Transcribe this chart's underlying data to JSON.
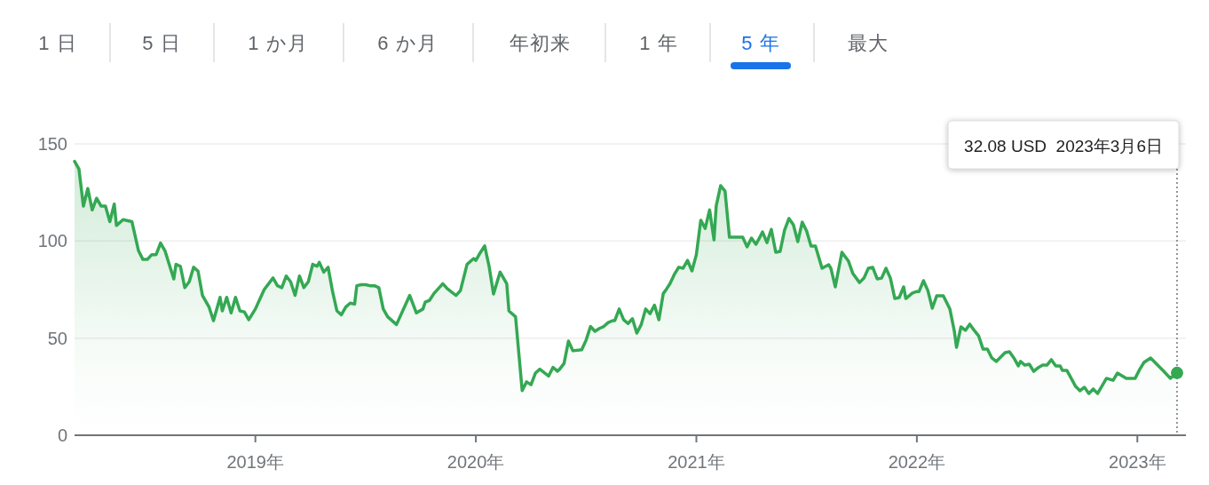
{
  "chart_data": {
    "type": "area",
    "annotations": [
      "1 日",
      "5 日",
      "1 か月",
      "6 か月",
      "年初来",
      "1 年",
      "5 年",
      "最大",
      "32.08 USD  2023年3月6日"
    ],
    "xlim": [
      2018.18,
      2023.18
    ],
    "xticks": [
      {
        "value": 2019,
        "label": "2019年"
      },
      {
        "value": 2020,
        "label": "2020年"
      },
      {
        "value": 2021,
        "label": "2021年"
      },
      {
        "value": 2022,
        "label": "2022年"
      },
      {
        "value": 2023,
        "label": "2023年"
      }
    ],
    "ylim": [
      0,
      150
    ],
    "yticks": [
      0,
      50,
      100,
      150
    ],
    "grid": "y",
    "ref_lines": [
      {
        "axis": "x",
        "value": 2023.18,
        "label": null,
        "color": "#70757a",
        "line_style": "dotted"
      }
    ],
    "series": [
      {
        "color": "#34a853",
        "x": [
          2018.18,
          2018.2,
          2018.22,
          2018.24,
          2018.26,
          2018.28,
          2018.3,
          2018.32,
          2018.34,
          2018.36,
          2018.37,
          2018.4,
          2018.44,
          2018.47,
          2018.49,
          2018.51,
          2018.53,
          2018.55,
          2018.57,
          2018.59,
          2018.63,
          2018.64,
          2018.66,
          2018.68,
          2018.7,
          2018.72,
          2018.74,
          2018.76,
          2018.79,
          2018.81,
          2018.84,
          2018.85,
          2018.87,
          2018.89,
          2018.91,
          2018.93,
          2018.95,
          2018.97,
          2019.0,
          2019.04,
          2019.08,
          2019.1,
          2019.12,
          2019.14,
          2019.16,
          2019.18,
          2019.2,
          2019.22,
          2019.24,
          2019.26,
          2019.28,
          2019.29,
          2019.31,
          2019.33,
          2019.35,
          2019.37,
          2019.39,
          2019.41,
          2019.43,
          2019.45,
          2019.46,
          2019.48,
          2019.5,
          2019.52,
          2019.54,
          2019.56,
          2019.58,
          2019.6,
          2019.64,
          2019.7,
          2019.73,
          2019.76,
          2019.77,
          2019.79,
          2019.81,
          2019.85,
          2019.87,
          2019.91,
          2019.93,
          2019.96,
          2019.99,
          2020.0,
          2020.02,
          2020.04,
          2020.06,
          2020.08,
          2020.11,
          2020.14,
          2020.15,
          2020.18,
          2020.21,
          2020.23,
          2020.25,
          2020.27,
          2020.29,
          2020.33,
          2020.35,
          2020.37,
          2020.38,
          2020.4,
          2020.42,
          2020.44,
          2020.48,
          2020.5,
          2020.52,
          2020.54,
          2020.56,
          2020.58,
          2020.6,
          2020.62,
          2020.63,
          2020.65,
          2020.67,
          2020.69,
          2020.71,
          2020.73,
          2020.75,
          2020.77,
          2020.79,
          2020.81,
          2020.83,
          2020.85,
          2020.86,
          2020.88,
          2020.9,
          2020.92,
          2020.94,
          2020.96,
          2020.98,
          2021.0,
          2021.02,
          2021.04,
          2021.06,
          2021.08,
          2021.09,
          2021.11,
          2021.13,
          2021.15,
          2021.21,
          2021.23,
          2021.25,
          2021.27,
          2021.29,
          2021.3,
          2021.32,
          2021.34,
          2021.36,
          2021.38,
          2021.4,
          2021.42,
          2021.44,
          2021.46,
          2021.48,
          2021.5,
          2021.52,
          2021.54,
          2021.57,
          2021.6,
          2021.61,
          2021.63,
          2021.66,
          2021.69,
          2021.71,
          2021.74,
          2021.76,
          2021.78,
          2021.8,
          2021.82,
          2021.84,
          2021.86,
          2021.88,
          2021.9,
          2021.92,
          2021.94,
          2021.95,
          2021.98,
          2022.0,
          2022.01,
          2022.03,
          2022.05,
          2022.07,
          2022.09,
          2022.12,
          2022.15,
          2022.17,
          2022.18,
          2022.2,
          2022.22,
          2022.24,
          2022.26,
          2022.28,
          2022.3,
          2022.32,
          2022.34,
          2022.36,
          2022.38,
          2022.4,
          2022.42,
          2022.44,
          2022.46,
          2022.47,
          2022.49,
          2022.51,
          2022.53,
          2022.55,
          2022.57,
          2022.59,
          2022.61,
          2022.63,
          2022.65,
          2022.66,
          2022.68,
          2022.7,
          2022.72,
          2022.74,
          2022.76,
          2022.78,
          2022.8,
          2022.82,
          2022.86,
          2022.89,
          2022.91,
          2022.95,
          2022.99,
          2023.01,
          2023.03,
          2023.06,
          2023.1,
          2023.12,
          2023.15,
          2023.18
        ],
        "values": [
          141,
          137,
          118,
          127,
          116,
          122,
          118,
          118,
          110,
          119,
          108,
          111,
          110,
          95,
          90.5,
          90.5,
          93,
          93,
          99,
          95,
          80.5,
          88,
          87,
          76,
          79,
          86.5,
          84.5,
          72,
          66,
          59,
          71,
          64,
          71,
          63,
          71,
          64,
          63.5,
          59.5,
          65,
          75,
          81,
          77,
          76,
          82,
          79,
          72,
          82,
          76,
          79,
          88,
          87,
          89,
          84,
          86.5,
          74,
          64,
          62,
          66,
          68,
          67.5,
          77,
          77.5,
          77.5,
          77,
          77,
          76,
          65,
          61,
          57,
          72,
          63,
          65,
          68.5,
          69.5,
          73,
          78,
          75.5,
          72,
          74.5,
          88,
          91,
          90,
          94,
          97.5,
          87,
          72.7,
          84,
          78,
          64,
          61,
          23,
          27.5,
          26,
          32,
          34,
          30.5,
          35,
          33,
          34,
          37,
          48.5,
          43.5,
          44,
          49,
          56,
          53.5,
          55,
          56,
          58,
          59,
          59,
          65,
          59.5,
          57.5,
          60,
          52.6,
          57,
          65,
          62.6,
          67,
          59.5,
          73,
          74.5,
          78,
          82.8,
          86.5,
          86,
          90,
          84.6,
          93,
          110.7,
          106.5,
          116,
          100.6,
          118,
          128.5,
          125.7,
          102,
          102,
          97,
          101.5,
          98.3,
          102.4,
          104.7,
          99.2,
          106,
          94.2,
          94.7,
          105.6,
          111.6,
          108.4,
          99.7,
          109.7,
          105.2,
          97.4,
          97.4,
          86,
          87.8,
          86,
          76.4,
          94.2,
          89.6,
          83.2,
          78.6,
          80.9,
          86,
          86.4,
          80.5,
          80.9,
          86,
          80.9,
          70.4,
          70.9,
          76.4,
          70.4,
          73.2,
          74,
          74,
          79.6,
          74.5,
          65.4,
          71.8,
          71.8,
          64.9,
          53.5,
          45.3,
          55.8,
          54,
          57.2,
          54,
          51.2,
          44.4,
          44.4,
          39.8,
          38,
          40.2,
          42.5,
          43,
          39.8,
          35.7,
          38,
          36.1,
          36.6,
          32.9,
          34.8,
          36.1,
          36.1,
          38.9,
          35.7,
          35.7,
          33.4,
          33.4,
          29.3,
          25.1,
          22.9,
          24.7,
          21.5,
          23.8,
          21.5,
          29.3,
          28.3,
          32,
          29.3,
          29.3,
          33.8,
          37.5,
          39.8,
          35.2,
          32.9,
          29.3,
          32.08
        ]
      }
    ]
  }
}
